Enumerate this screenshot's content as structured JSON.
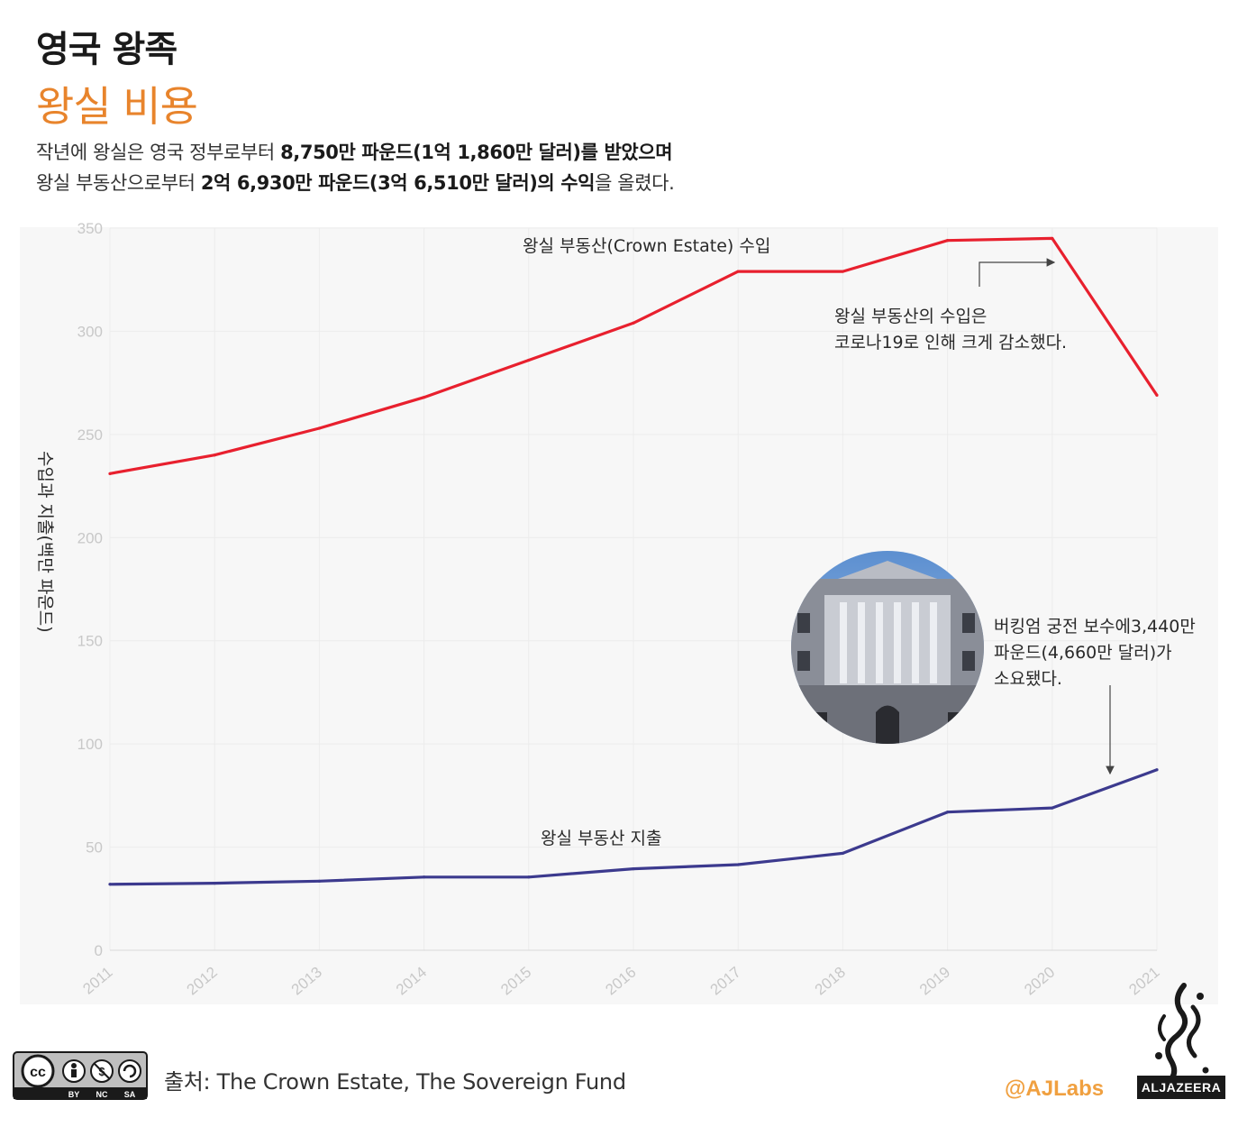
{
  "header": {
    "title": "영국 왕족",
    "subtitle": "왕실 비용",
    "desc_line1_a": "작년에 왕실은 영국 정부로부터 ",
    "desc_line1_b": "8,750만 파운드(1억 1,860만 달러)를 받았으며",
    "desc_line2_a": "왕실 부동산으로부터 ",
    "desc_line2_b": "2억 6,930만 파운드(3억 6,510만 달러)의 수익",
    "desc_line2_c": "을 올렸다."
  },
  "chart_data": {
    "type": "line",
    "x": [
      "2011",
      "2012",
      "2013",
      "2014",
      "2015",
      "2016",
      "2017",
      "2018",
      "2019",
      "2020",
      "2021"
    ],
    "ylabel": "수입과 지출(백만 파운드)",
    "ylim": [
      0,
      350
    ],
    "yticks": [
      0,
      50,
      100,
      150,
      200,
      250,
      300,
      350
    ],
    "grid": true,
    "series": [
      {
        "name": "왕실 부동산(Crown Estate) 수입",
        "color": "#e8202e",
        "values": [
          231,
          240,
          253,
          268,
          286,
          304,
          329,
          329,
          344,
          345,
          269
        ]
      },
      {
        "name": "왕실 부동산 지출",
        "color": "#3c3a8e",
        "values": [
          32,
          32.5,
          33.5,
          35.5,
          35.5,
          39.5,
          41.5,
          47,
          67,
          69,
          87.5
        ]
      }
    ],
    "annotations": {
      "covid_line1": "왕실 부동산의 수입은",
      "covid_line2": "코로나19로 인해 크게 감소했다.",
      "palace_line1": "버킹엄 궁전 보수에3,440만",
      "palace_line2": "파운드(4,660만 달러)가",
      "palace_line3": "소요됐다."
    }
  },
  "footer": {
    "source": "출처: The Crown Estate, The Sovereign Fund",
    "handle": "@AJLabs",
    "logo_word": "ALJAZEERA",
    "cc_labels": [
      "BY",
      "NC",
      "SA"
    ]
  }
}
